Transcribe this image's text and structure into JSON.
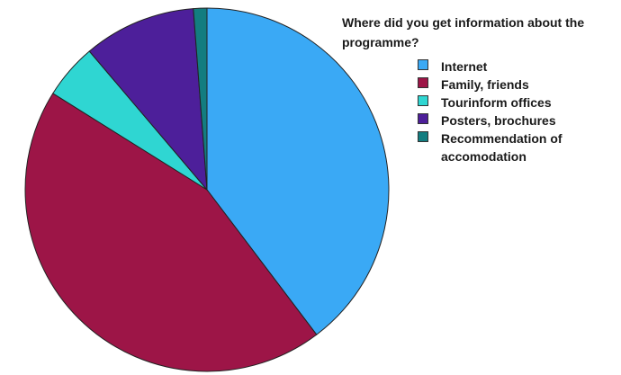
{
  "chart_data": {
    "type": "pie",
    "title": "Where did you get information about the programme?",
    "slices": [
      {
        "label": "Internet",
        "value": 39.7,
        "color": "#3aa9f5"
      },
      {
        "label": "Family, friends",
        "value": 44.2,
        "color": "#9d1547"
      },
      {
        "label": "Tourinform offices",
        "value": 4.9,
        "color": "#2fd6d2"
      },
      {
        "label": "Posters, brochures",
        "value": 10.0,
        "color": "#4d1f9a"
      },
      {
        "label": "Recommendation of accomodation",
        "value": 1.2,
        "color": "#137d80"
      }
    ],
    "legend_position": "right",
    "start_angle": "top",
    "direction": "clockwise"
  }
}
